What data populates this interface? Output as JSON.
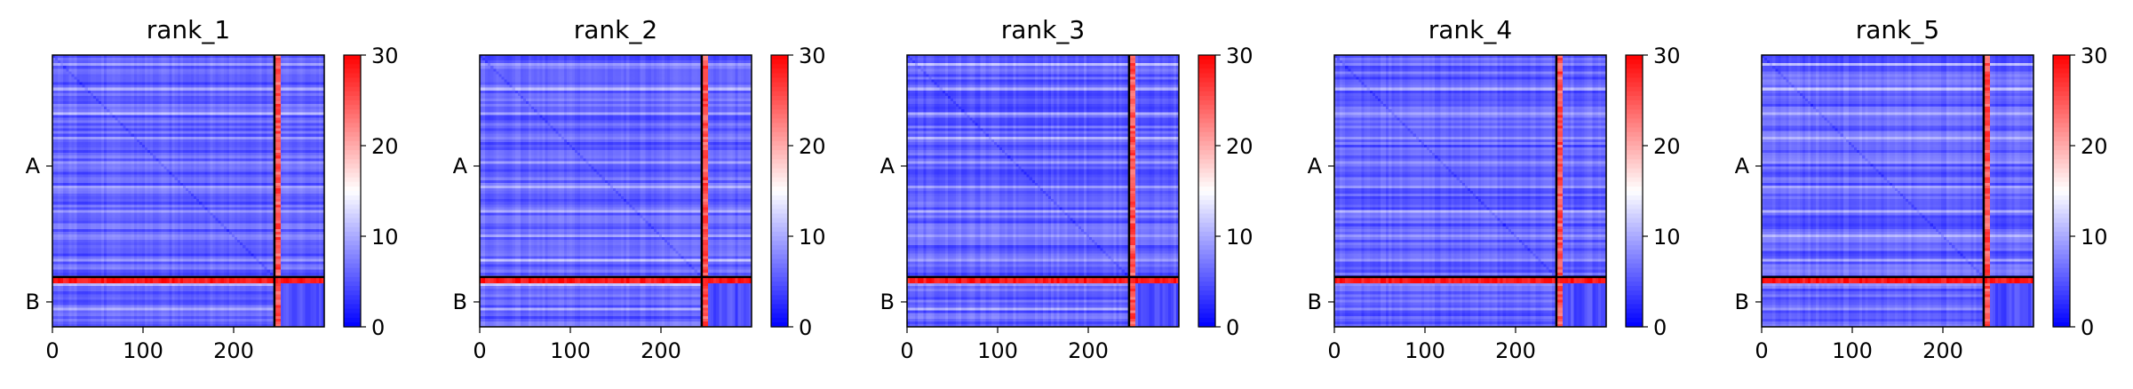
{
  "chart_data": {
    "type": "heatmap",
    "colormap": [
      "#0000ff",
      "#ffffff",
      "#ff0000"
    ],
    "value_range": [
      0,
      30
    ],
    "matrix_size": 300,
    "segment_boundary": 245,
    "x_ticks": [
      0,
      100,
      200
    ],
    "x_tick_labels": [
      "0",
      "100",
      "200"
    ],
    "y_tick_labels": [
      "A",
      "B"
    ],
    "colorbar_ticks": [
      0,
      10,
      20,
      30
    ],
    "colorbar_tick_labels": [
      "0",
      "10",
      "20",
      "30"
    ],
    "panels": [
      {
        "title": "rank_1"
      },
      {
        "title": "rank_2"
      },
      {
        "title": "rank_3"
      },
      {
        "title": "rank_4"
      },
      {
        "title": "rank_5"
      }
    ]
  }
}
